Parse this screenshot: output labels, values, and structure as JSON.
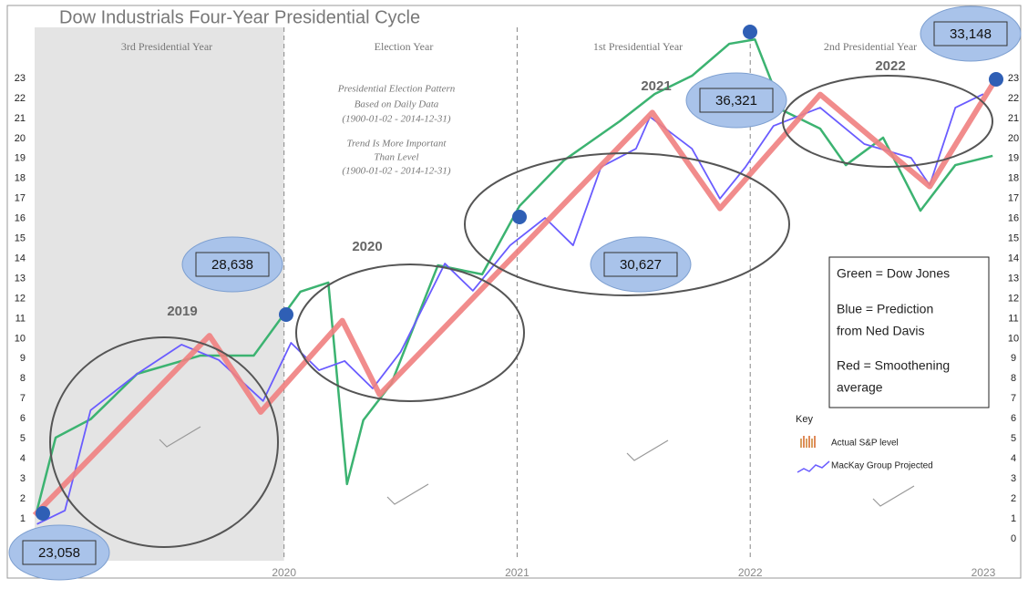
{
  "chart_data": {
    "type": "line",
    "title": "Dow Industrials Four-Year Presidential Cycle",
    "xlim": [
      2018.93,
      2023.09
    ],
    "ylim": [
      -1.1,
      26.6
    ],
    "xticks": [
      2020,
      2021,
      2022,
      2023
    ],
    "yticks": [
      0,
      1,
      2,
      3,
      4,
      5,
      6,
      7,
      8,
      9,
      10,
      11,
      12,
      13,
      14,
      15,
      16,
      17,
      18,
      19,
      20,
      21,
      22,
      23
    ],
    "phases": [
      "3rd Presidential Year",
      "Election Year",
      "1st Presidential Year",
      "2nd Presidential Year"
    ],
    "year_labels": [
      "2019",
      "2020",
      "2021",
      "2022"
    ],
    "notes": [
      "Presidential Election Pattern",
      "Based on Daily Data",
      "(1900-01-02 - 2014-12-31)",
      "Trend Is More Important",
      "Than Level",
      "(1900-01-02 - 2014-12-31)"
    ],
    "callouts": [
      "23,058",
      "28,638",
      "30,627",
      "36,321",
      "33,148"
    ],
    "legend_box": [
      {
        "lines": [
          "Green = Dow Jones"
        ],
        "color": "#3a8a2e"
      },
      {
        "lines": [
          "Blue = Prediction",
          "from Ned Davis"
        ],
        "color": "#2f4fa0"
      },
      {
        "lines": [
          "Red = Smoothening",
          "average"
        ],
        "color": "#d42020"
      }
    ],
    "key": {
      "title": "Key",
      "items": [
        "Actual S&P level",
        "MacKay Group Projected"
      ]
    },
    "series": [
      {
        "name": "Dow Jones",
        "color": "#3cb371",
        "x": [
          2018.94,
          2019.02,
          2019.17,
          2019.37,
          2019.64,
          2019.87,
          2020.07,
          2020.19,
          2020.27,
          2020.34,
          2020.46,
          2020.66,
          2020.85,
          2021.01,
          2021.2,
          2021.44,
          2021.59,
          2021.75,
          2021.91,
          2022.02,
          2022.14,
          2022.3,
          2022.41,
          2022.57,
          2022.73,
          2022.88,
          2023.04
        ],
        "values": [
          1.41,
          5.05,
          5.97,
          8.24,
          9.15,
          9.15,
          12.34,
          12.8,
          2.73,
          5.92,
          7.74,
          13.66,
          13.21,
          16.62,
          18.9,
          20.86,
          22.22,
          23.13,
          24.73,
          24.95,
          21.4,
          20.49,
          18.67,
          20.04,
          16.39,
          18.67,
          19.13
        ]
      },
      {
        "name": "Prediction from Ned Davis",
        "color": "#6a5cff",
        "x": [
          2018.94,
          2019.06,
          2019.17,
          2019.37,
          2019.56,
          2019.72,
          2019.91,
          2020.03,
          2020.15,
          2020.26,
          2020.38,
          2020.5,
          2020.69,
          2020.81,
          2020.97,
          2021.12,
          2021.24,
          2021.36,
          2021.51,
          2021.57,
          2021.75,
          2021.87,
          2021.98,
          2022.1,
          2022.3,
          2022.49,
          2022.69,
          2022.77,
          2022.88,
          2023.0
        ],
        "values": [
          0.73,
          1.41,
          6.42,
          8.24,
          9.7,
          8.93,
          6.88,
          9.79,
          8.42,
          8.88,
          7.51,
          9.33,
          13.75,
          12.39,
          14.66,
          16.03,
          14.66,
          18.58,
          19.49,
          21.08,
          19.49,
          16.99,
          18.58,
          20.63,
          21.54,
          19.72,
          19.03,
          17.67,
          21.54,
          22.22
        ]
      },
      {
        "name": "Smoothening average",
        "color": "#f08080",
        "x": [
          2018.93,
          2019.68,
          2019.9,
          2020.25,
          2020.41,
          2021.58,
          2021.87,
          2022.3,
          2022.77,
          2023.05
        ],
        "values": [
          1.18,
          10.15,
          6.33,
          10.9,
          7.2,
          21.3,
          16.5,
          22.2,
          17.6,
          22.9
        ]
      }
    ]
  }
}
